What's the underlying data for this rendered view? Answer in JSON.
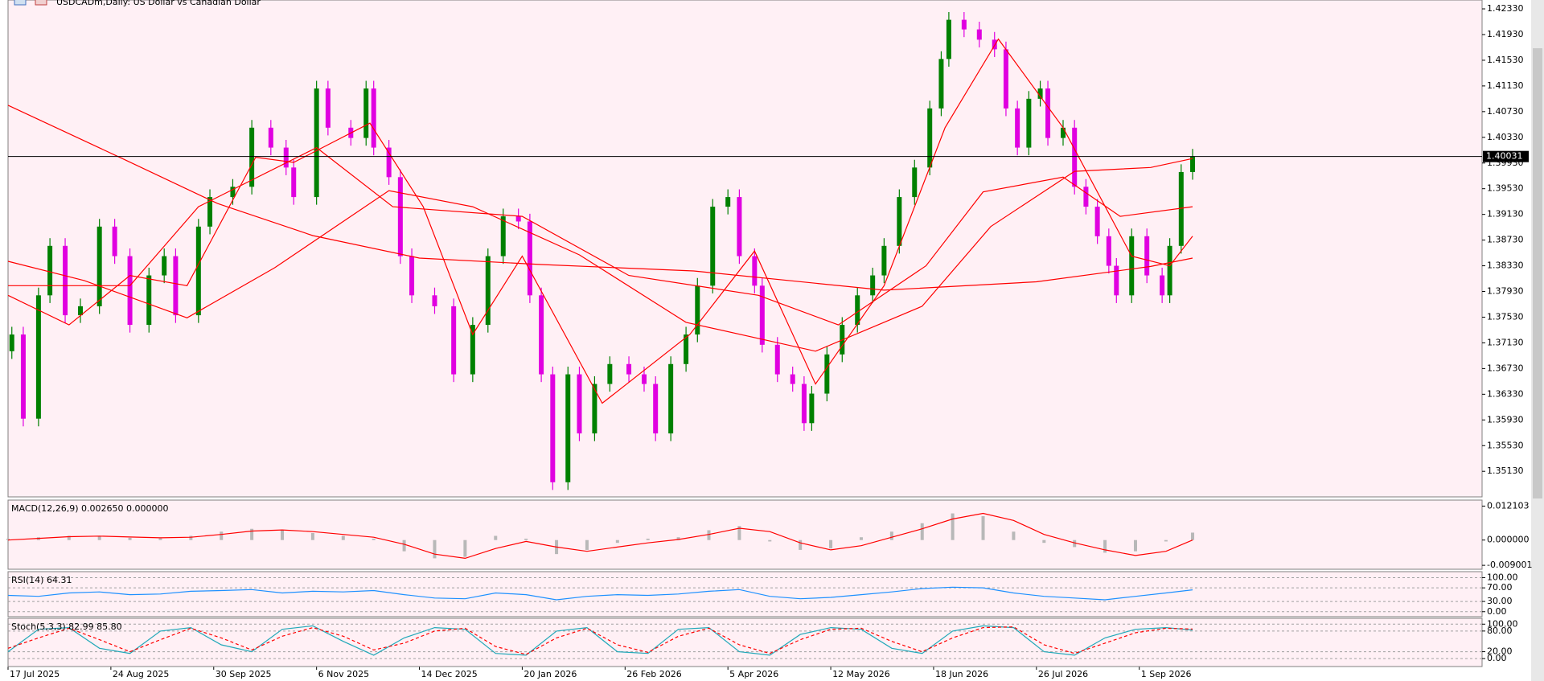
{
  "chart_data": [
    {
      "type": "candlestick",
      "title": "USDCADm,Daily:  US Dollar vs Canadian Dollar",
      "up_color": "#008000",
      "down_color": "#e000e0",
      "x": [
        1,
        4,
        8,
        11,
        15,
        19,
        24,
        28,
        32,
        37,
        41,
        44,
        50,
        53,
        59,
        64,
        69,
        73,
        75,
        81,
        84,
        90,
        94,
        96,
        100,
        103,
        106,
        112,
        117,
        122,
        126,
        130,
        134,
        137,
        140,
        143,
        147,
        150,
        154,
        158,
        163,
        167,
        170,
        174,
        178,
        181,
        185,
        189,
        192,
        196,
        198,
        202,
        206,
        209,
        211,
        215,
        219,
        223,
        227,
        230,
        234,
        238,
        242,
        245,
        247,
        251,
        255,
        259,
        262,
        265,
        268,
        271,
        273,
        277,
        280,
        283,
        286,
        289,
        291,
        295,
        299,
        303,
        305,
        308,
        311
      ],
      "open": [
        1.37,
        1.3726,
        1.3595,
        1.3787,
        1.3864,
        1.3756,
        1.377,
        1.3894,
        1.3848,
        1.3741,
        1.3818,
        1.3848,
        1.3756,
        1.3894,
        1.394,
        1.3956,
        1.4048,
        1.4017,
        1.3986,
        1.394,
        1.4109,
        1.4048,
        1.4032,
        1.4109,
        1.4017,
        1.3971,
        1.3848,
        1.3787,
        1.377,
        1.3664,
        1.3741,
        1.3848,
        1.391,
        1.3902,
        1.3787,
        1.3664,
        1.3496,
        1.3664,
        1.3572,
        1.3649,
        1.368,
        1.3664,
        1.3649,
        1.3572,
        1.368,
        1.3726,
        1.3802,
        1.3925,
        1.394,
        1.3848,
        1.3802,
        1.371,
        1.3664,
        1.3649,
        1.3588,
        1.3634,
        1.3695,
        1.3741,
        1.3787,
        1.3818,
        1.3864,
        1.394,
        1.3986,
        1.4078,
        1.4155,
        1.4216,
        1.4201,
        1.4185,
        1.417,
        1.4078,
        1.4017,
        1.4093,
        1.4109,
        1.4032,
        1.4048,
        1.3956,
        1.3925,
        1.3879,
        1.3833,
        1.3787,
        1.3879,
        1.3818,
        1.3787,
        1.3864,
        1.3979
      ],
      "high": [
        1.3738,
        1.3738,
        1.3799,
        1.3876,
        1.3876,
        1.3782,
        1.3906,
        1.3906,
        1.386,
        1.383,
        1.386,
        1.386,
        1.3906,
        1.3952,
        1.3968,
        1.406,
        1.406,
        1.4029,
        1.3998,
        1.4121,
        1.4121,
        1.406,
        1.4121,
        1.4121,
        1.4029,
        1.3983,
        1.386,
        1.3799,
        1.3782,
        1.3753,
        1.386,
        1.3922,
        1.3922,
        1.3914,
        1.3799,
        1.3676,
        1.3676,
        1.3676,
        1.3661,
        1.3692,
        1.3692,
        1.3676,
        1.3661,
        1.3692,
        1.3738,
        1.3814,
        1.3937,
        1.3952,
        1.3952,
        1.386,
        1.3814,
        1.3722,
        1.3676,
        1.3661,
        1.3646,
        1.3707,
        1.3753,
        1.3799,
        1.383,
        1.3876,
        1.3952,
        1.3998,
        1.409,
        1.4167,
        1.4228,
        1.4228,
        1.4213,
        1.4197,
        1.4182,
        1.409,
        1.4105,
        1.4121,
        1.4121,
        1.406,
        1.406,
        1.3968,
        1.3937,
        1.3891,
        1.3845,
        1.3891,
        1.3891,
        1.383,
        1.3876,
        1.3991,
        1.4015
      ],
      "low": [
        1.3688,
        1.3583,
        1.3583,
        1.3775,
        1.3744,
        1.3744,
        1.3758,
        1.3836,
        1.3729,
        1.3729,
        1.3806,
        1.3744,
        1.3744,
        1.3882,
        1.3928,
        1.3944,
        1.4005,
        1.3974,
        1.3928,
        1.3928,
        1.4036,
        1.402,
        1.402,
        1.4005,
        1.3959,
        1.3836,
        1.3775,
        1.3758,
        1.3652,
        1.3652,
        1.3729,
        1.3836,
        1.389,
        1.3775,
        1.3652,
        1.3484,
        1.3484,
        1.356,
        1.356,
        1.3637,
        1.3652,
        1.3637,
        1.356,
        1.356,
        1.3668,
        1.3714,
        1.379,
        1.3913,
        1.3836,
        1.379,
        1.3698,
        1.3652,
        1.3637,
        1.3576,
        1.3576,
        1.3622,
        1.3683,
        1.3729,
        1.3775,
        1.3806,
        1.3852,
        1.3928,
        1.3974,
        1.4066,
        1.4143,
        1.4189,
        1.4173,
        1.4158,
        1.4066,
        1.4005,
        1.4005,
        1.4081,
        1.402,
        1.402,
        1.3944,
        1.3913,
        1.3867,
        1.3821,
        1.3775,
        1.3775,
        1.3806,
        1.3775,
        1.3775,
        1.3852,
        1.3967
      ],
      "close": [
        1.3726,
        1.3595,
        1.3787,
        1.3864,
        1.3756,
        1.377,
        1.3894,
        1.3848,
        1.3741,
        1.3818,
        1.3848,
        1.3756,
        1.3894,
        1.394,
        1.3956,
        1.4048,
        1.4017,
        1.3986,
        1.394,
        1.4109,
        1.4048,
        1.4032,
        1.4109,
        1.4017,
        1.3971,
        1.3848,
        1.3787,
        1.377,
        1.3664,
        1.3741,
        1.3848,
        1.391,
        1.3902,
        1.3787,
        1.3664,
        1.3496,
        1.3664,
        1.3572,
        1.3649,
        1.368,
        1.3664,
        1.3649,
        1.3572,
        1.368,
        1.3726,
        1.3802,
        1.3925,
        1.394,
        1.3848,
        1.3802,
        1.371,
        1.3664,
        1.3649,
        1.3588,
        1.3634,
        1.3695,
        1.3741,
        1.3787,
        1.3818,
        1.3864,
        1.394,
        1.3986,
        1.4078,
        1.4155,
        1.4216,
        1.4201,
        1.4185,
        1.417,
        1.4078,
        1.4017,
        1.4093,
        1.4109,
        1.4032,
        1.4048,
        1.3956,
        1.3925,
        1.3879,
        1.3833,
        1.3787,
        1.3879,
        1.3818,
        1.3787,
        1.3864,
        1.3979,
        1.4003
      ],
      "lines": [
        {
          "color": "#ff0000",
          "x": [
            0,
            30,
            55,
            80,
            108,
            140,
            180,
            230,
            270,
            300,
            311
          ],
          "values": [
            1.4083,
            1.4,
            1.393,
            1.388,
            1.3845,
            1.3835,
            1.3825,
            1.3795,
            1.3808,
            1.3832,
            1.3845
          ]
        },
        {
          "color": "#ff0000",
          "x": [
            0,
            20,
            47,
            70,
            100,
            122,
            150,
            178,
            212,
            240,
            258,
            280,
            300,
            311
          ],
          "values": [
            1.384,
            1.381,
            1.3752,
            1.383,
            1.395,
            1.3925,
            1.385,
            1.3745,
            1.37,
            1.377,
            1.3894,
            1.398,
            1.3986,
            1.4
          ]
        },
        {
          "color": "#ff0000",
          "x": [
            0,
            32,
            50,
            81,
            101,
            135,
            163,
            197,
            218,
            241,
            256,
            277,
            292,
            311
          ],
          "values": [
            1.3802,
            1.3802,
            1.3925,
            1.4017,
            1.3925,
            1.391,
            1.3818,
            1.3787,
            1.3741,
            1.3833,
            1.3948,
            1.3971,
            1.391,
            1.3925
          ]
        },
        {
          "color": "#ff0000",
          "x": [
            0,
            16,
            32,
            47,
            65,
            75,
            95,
            109,
            122,
            135,
            156,
            179,
            196,
            212,
            230,
            246,
            260,
            277,
            295,
            305,
            311
          ],
          "values": [
            1.3787,
            1.3741,
            1.3818,
            1.3802,
            1.4002,
            1.3994,
            1.4055,
            1.3925,
            1.3726,
            1.3848,
            1.3619,
            1.3726,
            1.3856,
            1.3649,
            1.3802,
            1.4048,
            1.4186,
            1.4048,
            1.3848,
            1.3833,
            1.3879
          ]
        }
      ],
      "last_price": 1.40031,
      "xlim": [
        0,
        387
      ],
      "ylim": [
        1.34732,
        1.42468
      ],
      "yticks": [
        {
          "value": 1.4233,
          "label": "1.42330"
        },
        {
          "value": 1.4193,
          "label": "1.41930"
        },
        {
          "value": 1.4153,
          "label": "1.41530"
        },
        {
          "value": 1.4113,
          "label": "1.41130"
        },
        {
          "value": 1.4073,
          "label": "1.40730"
        },
        {
          "value": 1.4033,
          "label": "1.40330"
        },
        {
          "value": 1.3993,
          "label": "1.39930"
        },
        {
          "value": 1.3953,
          "label": "1.39530"
        },
        {
          "value": 1.3913,
          "label": "1.39130"
        },
        {
          "value": 1.3873,
          "label": "1.38730"
        },
        {
          "value": 1.3833,
          "label": "1.38330"
        },
        {
          "value": 1.3793,
          "label": "1.37930"
        },
        {
          "value": 1.3753,
          "label": "1.37530"
        },
        {
          "value": 1.3713,
          "label": "1.37130"
        },
        {
          "value": 1.3673,
          "label": "1.36730"
        },
        {
          "value": 1.3633,
          "label": "1.36330"
        },
        {
          "value": 1.3593,
          "label": "1.35930"
        },
        {
          "value": 1.3553,
          "label": "1.35530"
        },
        {
          "value": 1.3513,
          "label": "1.35130"
        }
      ],
      "xticks": [
        {
          "value": 0,
          "label": "17 Jul 2025"
        },
        {
          "value": 27,
          "label": "24 Aug 2025"
        },
        {
          "value": 54,
          "label": "30 Sep 2025"
        },
        {
          "value": 81,
          "label": "6 Nov 2025"
        },
        {
          "value": 108,
          "label": "14 Dec 2025"
        },
        {
          "value": 135,
          "label": "20 Jan 2026"
        },
        {
          "value": 162,
          "label": "26 Feb 2026"
        },
        {
          "value": 189,
          "label": "5 Apr 2026"
        },
        {
          "value": 216,
          "label": "12 May 2026"
        },
        {
          "value": 243,
          "label": "18 Jun 2026"
        },
        {
          "value": 270,
          "label": "26 Jul 2026"
        },
        {
          "value": 297,
          "label": "1 Sep 2026"
        }
      ],
      "grid": false
    },
    {
      "type": "bar",
      "title": "MACD(12,26,9) 0.002650 0.000000",
      "x": [
        0,
        8,
        16,
        24,
        32,
        40,
        48,
        56,
        64,
        72,
        80,
        88,
        96,
        104,
        112,
        120,
        128,
        136,
        144,
        152,
        160,
        168,
        176,
        184,
        192,
        200,
        208,
        216,
        224,
        232,
        240,
        248,
        256,
        264,
        272,
        280,
        288,
        296,
        304,
        311
      ],
      "series": [
        {
          "kind": "bar",
          "color": "#b8b8b8",
          "values": [
            0.0005,
            0.001,
            0.0015,
            0.0012,
            0.0008,
            0.0006,
            0.0015,
            0.003,
            0.004,
            0.0035,
            0.0025,
            0.0015,
            0.0005,
            -0.004,
            -0.0065,
            -0.006,
            0.0015,
            0.0005,
            -0.005,
            -0.0035,
            -0.001,
            0.0005,
            0.001,
            0.0035,
            0.005,
            -0.0005,
            -0.0035,
            -0.003,
            0.001,
            0.003,
            0.006,
            0.0095,
            0.0085,
            0.003,
            -0.001,
            -0.0025,
            -0.0045,
            -0.004,
            -0.0005,
            0.00265
          ]
        },
        {
          "kind": "line",
          "color": "#ff0000",
          "values": [
            0,
            0.0006,
            0.0012,
            0.0014,
            0.0011,
            0.0008,
            0.001,
            0.002,
            0.0032,
            0.0036,
            0.003,
            0.002,
            0.001,
            -0.0015,
            -0.005,
            -0.0065,
            -0.003,
            -0.0005,
            -0.0025,
            -0.004,
            -0.0025,
            -0.001,
            0.0002,
            0.002,
            0.0042,
            0.003,
            -0.001,
            -0.0035,
            -0.002,
            0.001,
            0.004,
            0.0075,
            0.0095,
            0.007,
            0.002,
            -0.001,
            -0.0035,
            -0.0055,
            -0.004,
            0
          ]
        }
      ],
      "xlim": [
        0,
        387
      ],
      "ylim": [
        -0.0104,
        0.01424
      ],
      "yticks": [
        0.012103,
        {
          "value": 0,
          "label": "0.000000"
        },
        -0.009001
      ],
      "grid": false
    },
    {
      "type": "line",
      "title": "RSI(14) 64.31",
      "x": [
        0,
        8,
        16,
        24,
        32,
        40,
        48,
        56,
        64,
        72,
        80,
        88,
        96,
        104,
        112,
        120,
        128,
        136,
        144,
        152,
        160,
        168,
        176,
        184,
        192,
        200,
        208,
        216,
        224,
        232,
        240,
        248,
        256,
        264,
        272,
        280,
        288,
        296,
        304,
        311
      ],
      "series": [
        {
          "color": "#1e90ff",
          "values": [
            48,
            45,
            55,
            58,
            50,
            52,
            60,
            62,
            65,
            55,
            60,
            58,
            62,
            50,
            40,
            38,
            55,
            50,
            35,
            45,
            50,
            48,
            52,
            60,
            65,
            45,
            38,
            42,
            50,
            58,
            68,
            72,
            70,
            55,
            45,
            40,
            35,
            45,
            55,
            64.31
          ]
        }
      ],
      "xlim": [
        0,
        387
      ],
      "ylim": [
        -14.7,
        117.6
      ],
      "yticks": [
        {
          "value": 100,
          "label": "100.00"
        },
        {
          "value": 70,
          "label": "70.00"
        },
        {
          "value": 30,
          "label": "30.00"
        },
        {
          "value": 0,
          "label": "0.00"
        }
      ],
      "grid": true
    },
    {
      "type": "line",
      "title": "Stoch(5,3,3) 82.99 85.80",
      "x": [
        0,
        8,
        16,
        24,
        32,
        40,
        48,
        56,
        64,
        72,
        80,
        88,
        96,
        104,
        112,
        120,
        128,
        136,
        144,
        152,
        160,
        168,
        176,
        184,
        192,
        200,
        208,
        216,
        224,
        232,
        240,
        248,
        256,
        264,
        272,
        280,
        288,
        296,
        304,
        311
      ],
      "series": [
        {
          "color": "#20a8b8",
          "values": [
            20,
            85,
            90,
            30,
            15,
            80,
            90,
            40,
            20,
            85,
            95,
            50,
            10,
            60,
            90,
            85,
            15,
            10,
            80,
            90,
            20,
            15,
            85,
            90,
            20,
            10,
            70,
            90,
            85,
            30,
            15,
            80,
            95,
            90,
            20,
            10,
            60,
            85,
            90,
            82.99
          ]
        },
        {
          "color": "#ff0000",
          "dash": true,
          "values": [
            30,
            60,
            88,
            55,
            20,
            55,
            88,
            60,
            25,
            65,
            90,
            65,
            25,
            45,
            80,
            88,
            35,
            12,
            60,
            88,
            40,
            18,
            65,
            88,
            40,
            15,
            55,
            85,
            88,
            50,
            20,
            60,
            90,
            92,
            40,
            15,
            45,
            75,
            88,
            85.8
          ]
        }
      ],
      "xlim": [
        0,
        387
      ],
      "ylim": [
        -23,
        117
      ],
      "yticks": [
        {
          "value": 100,
          "label": "100.00"
        },
        {
          "value": 80,
          "label": "80.00"
        },
        {
          "value": 20,
          "label": "20.00"
        },
        {
          "value": 0,
          "label": "0.00"
        }
      ],
      "grid": true
    }
  ]
}
